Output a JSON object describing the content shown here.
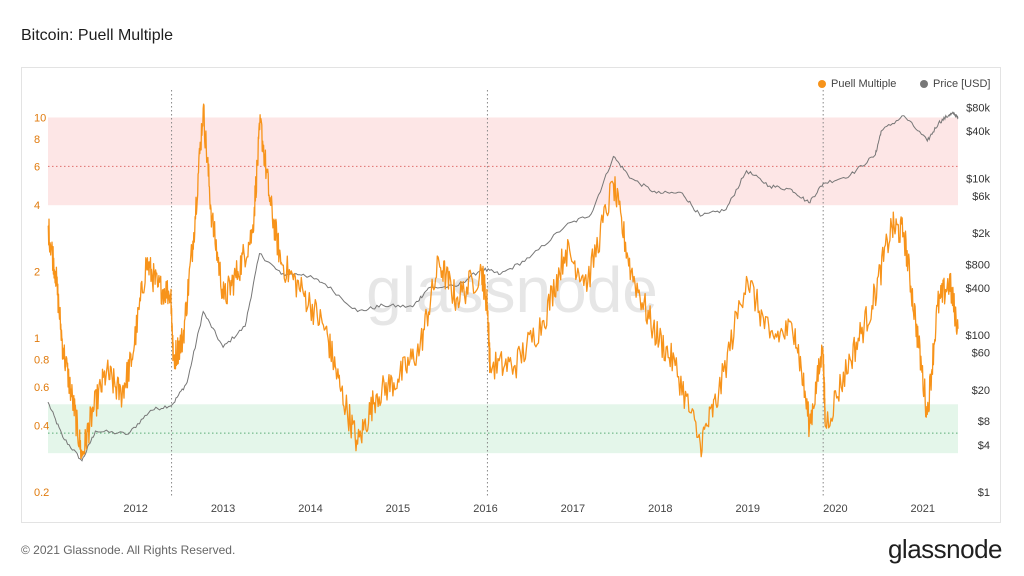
{
  "title": "Bitcoin: Puell Multiple",
  "footer": "© 2021 Glassnode. All Rights Reserved.",
  "brand": "glassnode",
  "watermark": "glassnode",
  "colors": {
    "puell": "#f7931a",
    "price": "#777777",
    "red_band": "#fde6e6",
    "green_band": "#e4f6ea",
    "red_line": "#d9534f",
    "green_line": "#3a9a5b"
  },
  "chart_data": {
    "type": "line",
    "title": "Bitcoin: Puell Multiple",
    "x_range": [
      "2011-07-01",
      "2021-11-25"
    ],
    "x_ticks": [
      "2012",
      "2013",
      "2014",
      "2015",
      "2016",
      "2017",
      "2018",
      "2019",
      "2020",
      "2021"
    ],
    "left_axis": {
      "scale": "log",
      "range": [
        0.2,
        12
      ],
      "ticks": [
        "0.2",
        "0.4",
        "0.6",
        "0.8",
        "1",
        "2",
        "4",
        "6",
        "8",
        "10"
      ]
    },
    "right_axis": {
      "scale": "log",
      "range": [
        1,
        100000
      ],
      "ticks": [
        "$1",
        "$4",
        "$8",
        "$20",
        "$60",
        "$100",
        "$400",
        "$800",
        "$2k",
        "$6k",
        "$10k",
        "$40k",
        "$80k"
      ]
    },
    "bands": [
      {
        "name": "",
        "y_from": 4,
        "y_to": 10,
        "mid": 6
      },
      {
        "name": "",
        "y_from": 0.3,
        "y_to": 0.5,
        "mid": 0.37
      }
    ],
    "halvings": [
      "2012-11-28",
      "2016-07-09",
      "2020-05-11"
    ],
    "legend_placement": "top-right",
    "series": [
      {
        "name": "Puell Multiple",
        "axis": "left",
        "points": [
          [
            "2011-07-01",
            3.2
          ],
          [
            "2011-08-01",
            2.0
          ],
          [
            "2011-09-01",
            0.9
          ],
          [
            "2011-10-15",
            0.5
          ],
          [
            "2011-11-20",
            0.29
          ],
          [
            "2012-01-01",
            0.45
          ],
          [
            "2012-03-01",
            0.7
          ],
          [
            "2012-05-01",
            0.55
          ],
          [
            "2012-06-15",
            0.8
          ],
          [
            "2012-08-15",
            2.2
          ],
          [
            "2012-10-01",
            1.7
          ],
          [
            "2012-11-25",
            1.6
          ],
          [
            "2012-12-05",
            0.8
          ],
          [
            "2013-01-15",
            1.0
          ],
          [
            "2013-03-01",
            3.0
          ],
          [
            "2013-04-09",
            11.0
          ],
          [
            "2013-05-15",
            3.5
          ],
          [
            "2013-07-05",
            1.5
          ],
          [
            "2013-09-01",
            2.0
          ],
          [
            "2013-11-01",
            3.0
          ],
          [
            "2013-12-04",
            9.5
          ],
          [
            "2014-01-15",
            4.0
          ],
          [
            "2014-03-01",
            2.2
          ],
          [
            "2014-06-01",
            1.6
          ],
          [
            "2014-09-01",
            1.1
          ],
          [
            "2014-11-01",
            0.6
          ],
          [
            "2015-01-14",
            0.33
          ],
          [
            "2015-04-01",
            0.55
          ],
          [
            "2015-07-01",
            0.65
          ],
          [
            "2015-10-01",
            0.9
          ],
          [
            "2015-12-20",
            2.2
          ],
          [
            "2016-03-01",
            1.5
          ],
          [
            "2016-06-15",
            2.0
          ],
          [
            "2016-07-09",
            1.4
          ],
          [
            "2016-07-20",
            0.75
          ],
          [
            "2016-11-01",
            0.75
          ],
          [
            "2017-03-01",
            1.2
          ],
          [
            "2017-06-01",
            2.5
          ],
          [
            "2017-09-01",
            1.8
          ],
          [
            "2017-12-17",
            5.0
          ],
          [
            "2018-03-01",
            2.0
          ],
          [
            "2018-06-01",
            1.1
          ],
          [
            "2018-09-01",
            0.75
          ],
          [
            "2018-12-15",
            0.33
          ],
          [
            "2019-03-01",
            0.55
          ],
          [
            "2019-06-26",
            1.9
          ],
          [
            "2019-10-01",
            1.0
          ],
          [
            "2020-01-15",
            1.1
          ],
          [
            "2020-03-15",
            0.4
          ],
          [
            "2020-05-10",
            0.9
          ],
          [
            "2020-05-20",
            0.4
          ],
          [
            "2020-09-01",
            0.8
          ],
          [
            "2020-12-01",
            1.4
          ],
          [
            "2021-02-21",
            3.2
          ],
          [
            "2021-04-13",
            3.0
          ],
          [
            "2021-06-01",
            1.2
          ],
          [
            "2021-07-20",
            0.45
          ],
          [
            "2021-09-01",
            1.4
          ],
          [
            "2021-10-20",
            1.8
          ],
          [
            "2021-11-25",
            1.1
          ]
        ]
      },
      {
        "name": "Price [USD]",
        "axis": "right",
        "points": [
          [
            "2011-07-01",
            14
          ],
          [
            "2011-09-01",
            5
          ],
          [
            "2011-11-20",
            2.5
          ],
          [
            "2012-01-15",
            6
          ],
          [
            "2012-06-01",
            5.5
          ],
          [
            "2012-09-01",
            11
          ],
          [
            "2012-12-01",
            13
          ],
          [
            "2013-02-01",
            25
          ],
          [
            "2013-04-09",
            200
          ],
          [
            "2013-07-01",
            70
          ],
          [
            "2013-10-01",
            130
          ],
          [
            "2013-11-30",
            1100
          ],
          [
            "2014-03-01",
            600
          ],
          [
            "2014-06-01",
            600
          ],
          [
            "2014-09-01",
            450
          ],
          [
            "2015-01-14",
            200
          ],
          [
            "2015-05-01",
            240
          ],
          [
            "2015-09-01",
            230
          ],
          [
            "2015-11-05",
            400
          ],
          [
            "2016-03-01",
            420
          ],
          [
            "2016-06-17",
            700
          ],
          [
            "2016-09-01",
            600
          ],
          [
            "2017-01-01",
            970
          ],
          [
            "2017-06-01",
            2500
          ],
          [
            "2017-09-15",
            3500
          ],
          [
            "2017-12-17",
            19000
          ],
          [
            "2018-03-01",
            10000
          ],
          [
            "2018-06-15",
            6500
          ],
          [
            "2018-10-01",
            6500
          ],
          [
            "2018-12-15",
            3300
          ],
          [
            "2019-04-01",
            4000
          ],
          [
            "2019-06-26",
            12500
          ],
          [
            "2019-10-01",
            8000
          ],
          [
            "2020-01-01",
            7200
          ],
          [
            "2020-03-12",
            4900
          ],
          [
            "2020-05-11",
            8600
          ],
          [
            "2020-09-01",
            11000
          ],
          [
            "2020-12-15",
            20000
          ],
          [
            "2021-01-08",
            40000
          ],
          [
            "2021-04-13",
            63000
          ],
          [
            "2021-07-20",
            30000
          ],
          [
            "2021-09-05",
            51000
          ],
          [
            "2021-10-20",
            65000
          ],
          [
            "2021-11-10",
            67000
          ],
          [
            "2021-11-25",
            58000
          ]
        ]
      }
    ]
  }
}
